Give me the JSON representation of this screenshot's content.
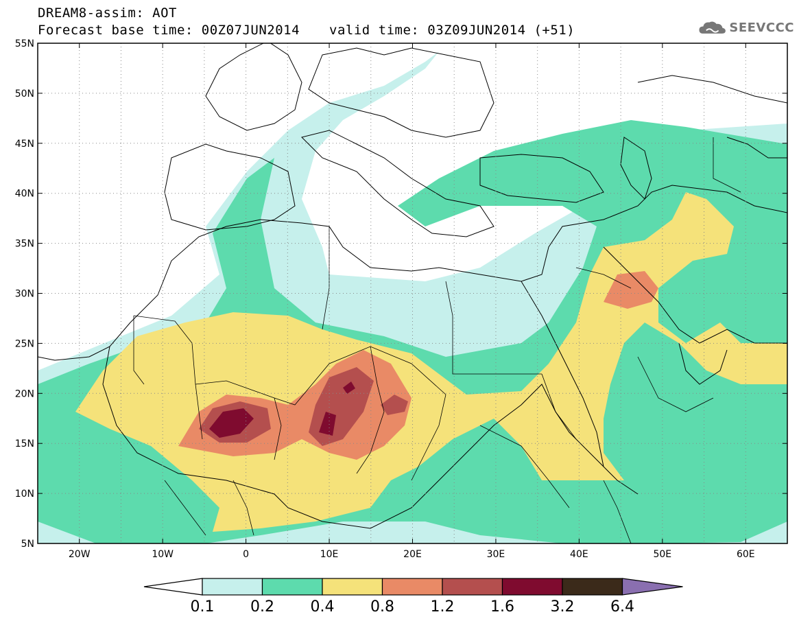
{
  "header": {
    "line1": "DREAM8-assim: AOT",
    "line2": "Forecast base time: 00Z07JUN2014",
    "valid": "valid time: 03Z09JUN2014 (+51)"
  },
  "logo": {
    "text": "SEEVCCC",
    "icon": "cloud-icon",
    "color": "#777777"
  },
  "map": {
    "lon_range": [
      -25,
      65
    ],
    "lat_range": [
      5,
      55
    ],
    "lat_ticks": [
      "5N",
      "10N",
      "15N",
      "20N",
      "25N",
      "30N",
      "35N",
      "40N",
      "45N",
      "50N",
      "55N"
    ],
    "lon_ticks": [
      "20W",
      "10W",
      "0",
      "10E",
      "20E",
      "30E",
      "40E",
      "50E",
      "60E"
    ],
    "grid": "dotted"
  },
  "colorbar": {
    "labels": [
      "0.1",
      "0.2",
      "0.4",
      "0.8",
      "1.2",
      "1.6",
      "3.2",
      "6.4"
    ],
    "colors": [
      "#c6f0ec",
      "#5ddbad",
      "#f5e27a",
      "#e98a66",
      "#b44f4e",
      "#7f0b2f",
      "#3b2a1a",
      "#8a6fb0"
    ],
    "extend_low_color": "#ffffff"
  }
}
